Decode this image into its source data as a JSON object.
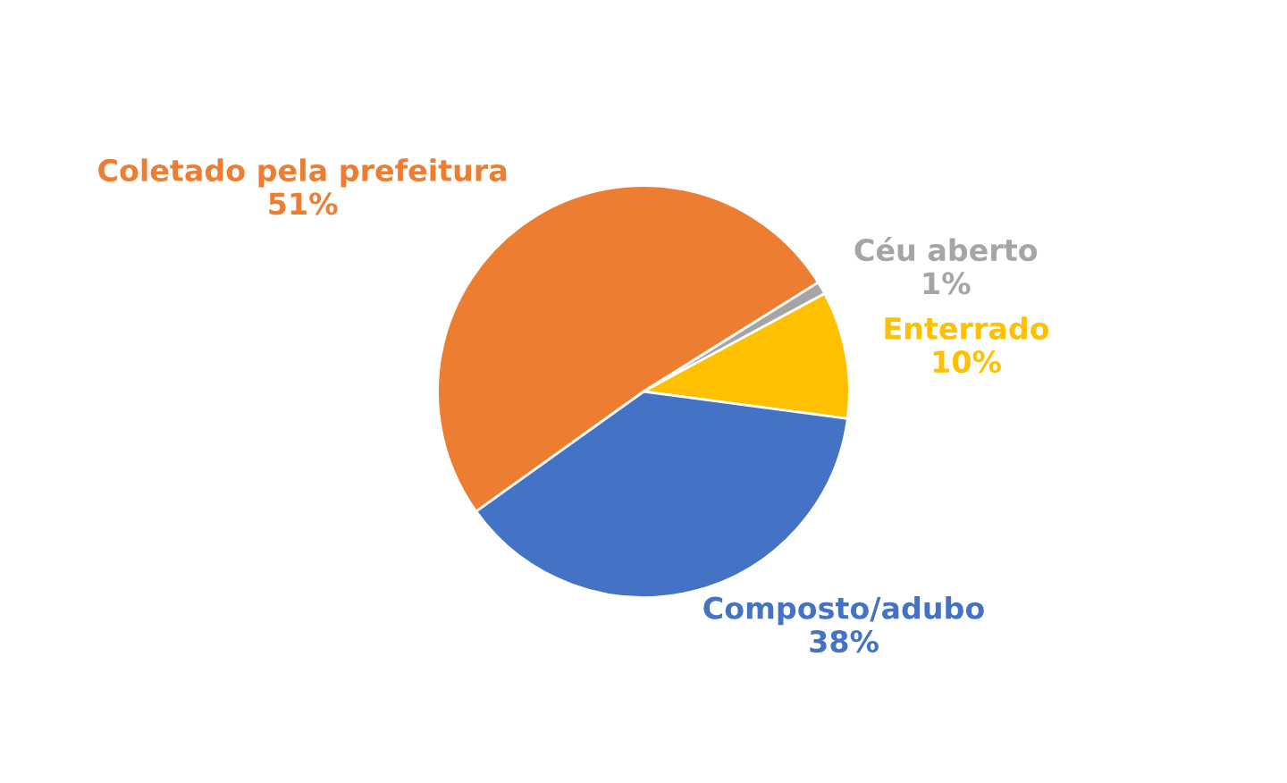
{
  "chart_data": {
    "type": "pie",
    "categories": [
      "Céu aberto",
      "Enterrado",
      "Composto/adubo",
      "Coletado pela prefeitura"
    ],
    "values": [
      1,
      10,
      38,
      51
    ],
    "value_labels": [
      "1%",
      "10%",
      "38%",
      "51%"
    ],
    "colors": [
      "#a5a5a5",
      "#ffc000",
      "#4472c4",
      "#ed7d31"
    ]
  }
}
